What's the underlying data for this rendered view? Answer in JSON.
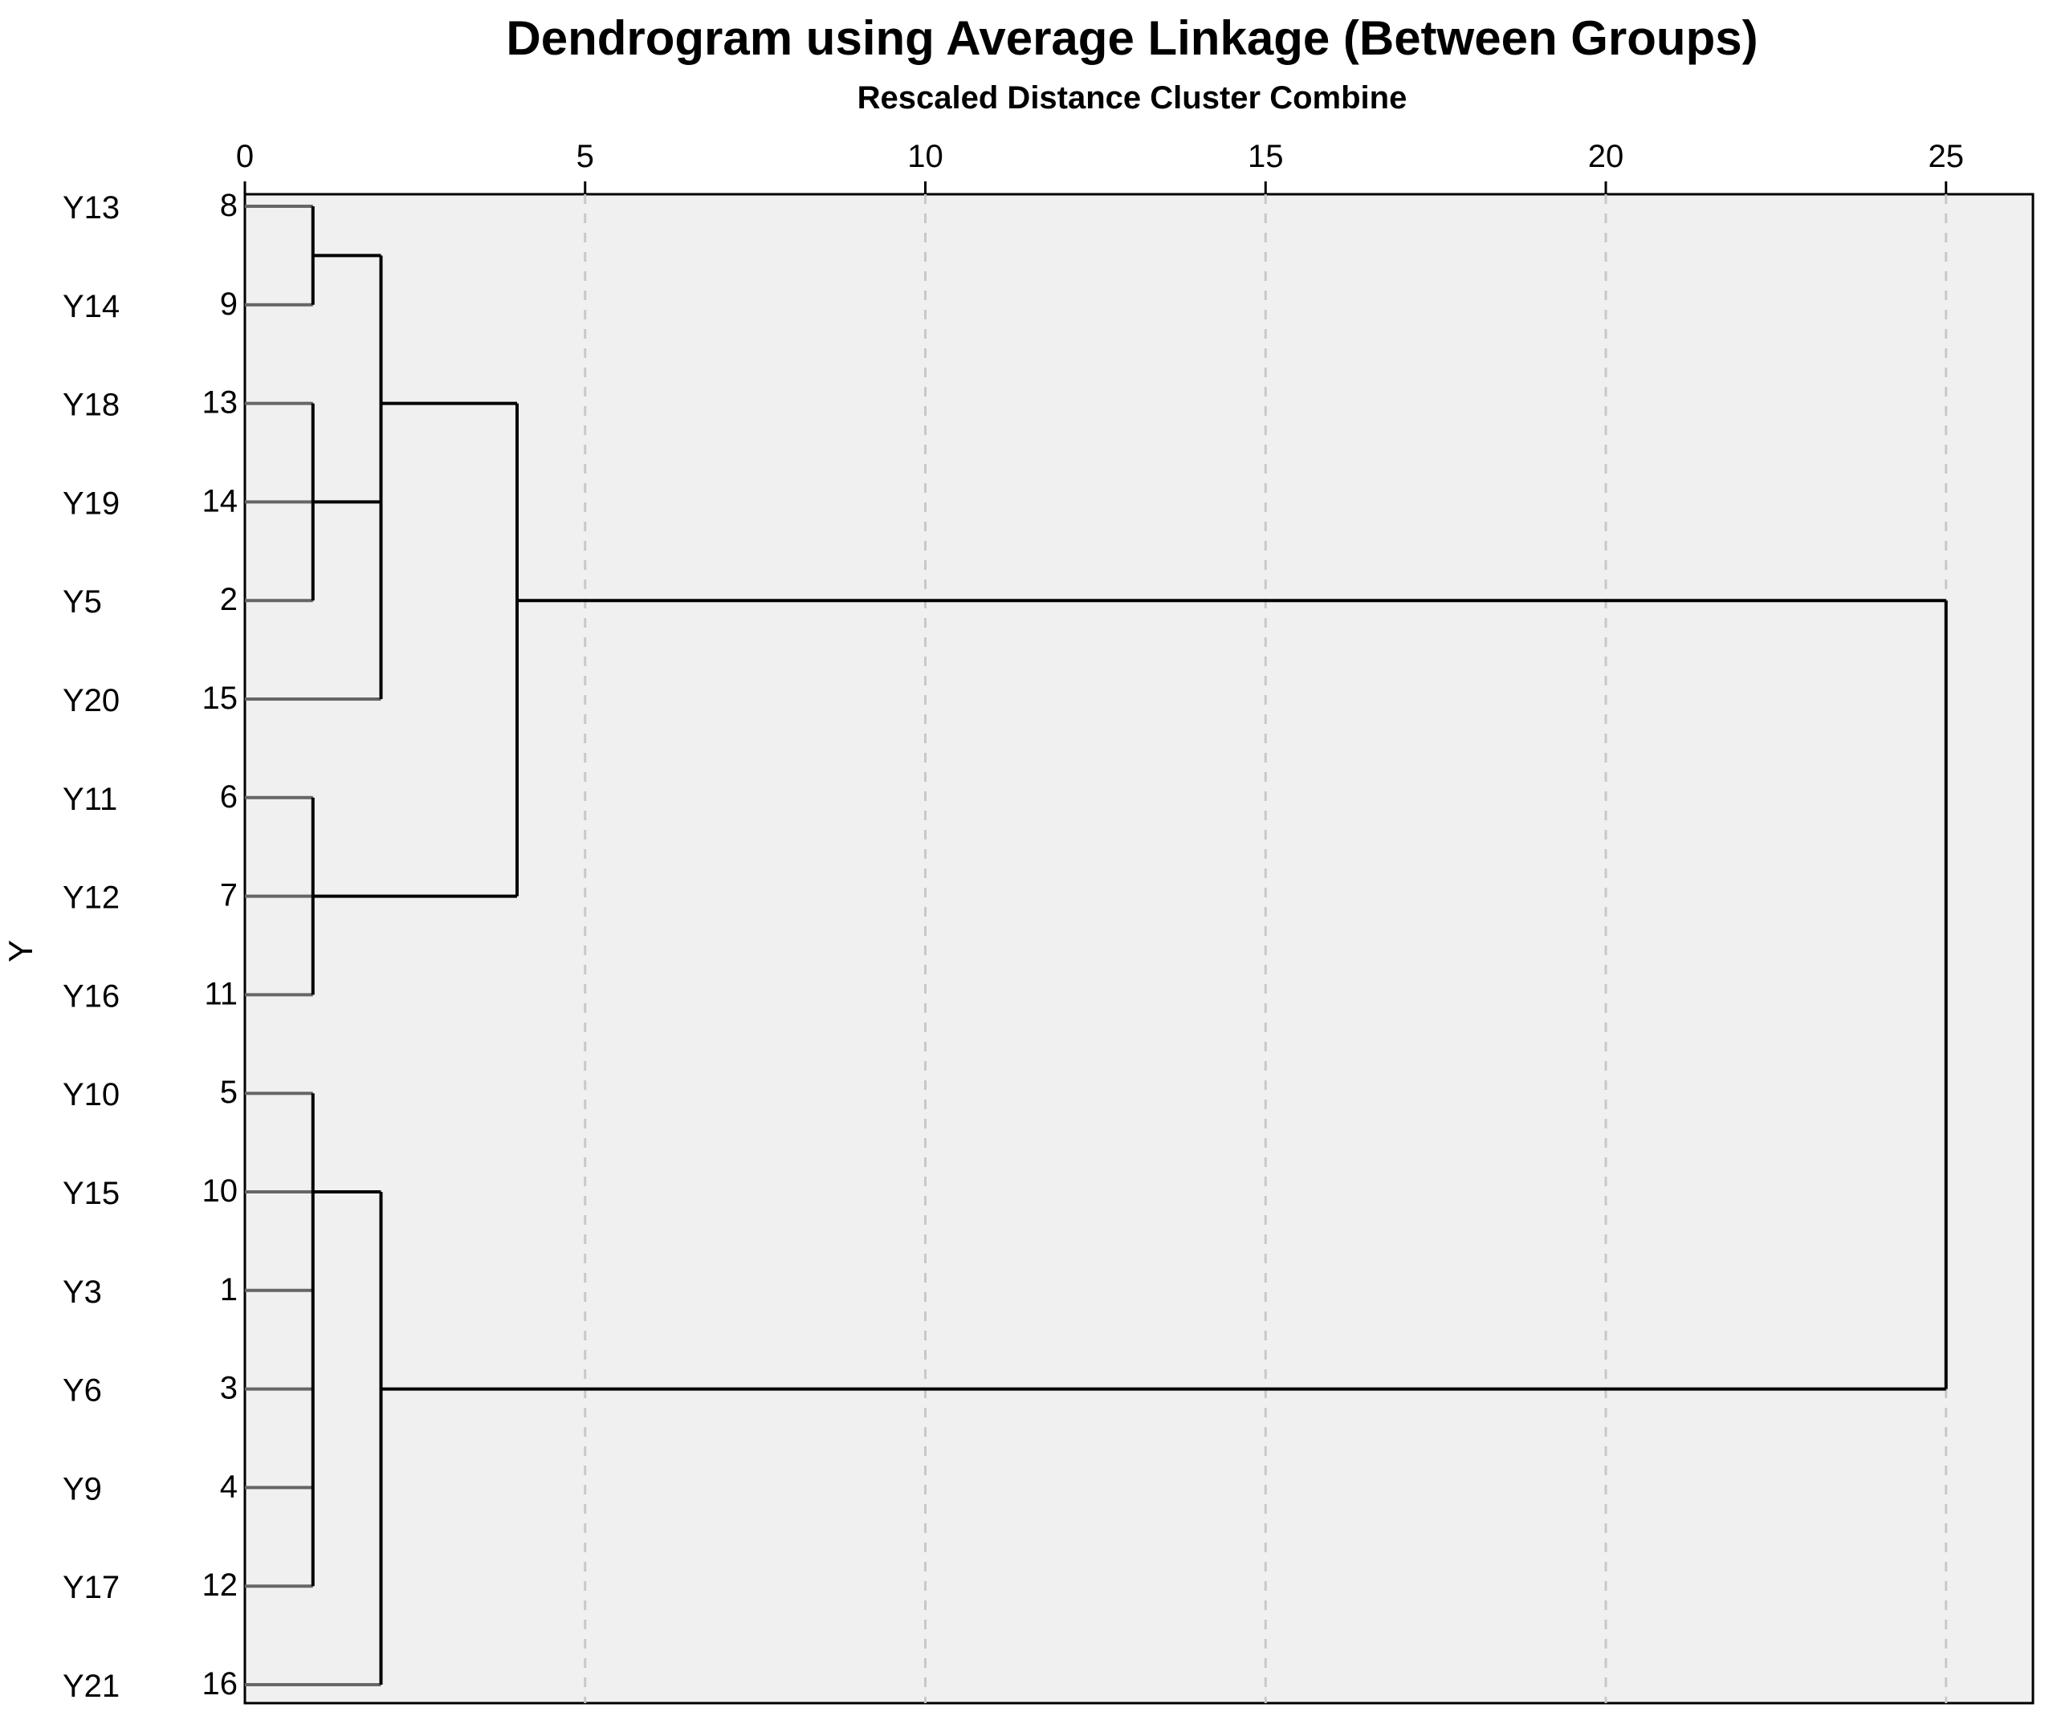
{
  "chart_data": {
    "type": "dendrogram",
    "title": "Dendrogram using Average Linkage (Between Groups)",
    "subtitle": "Rescaled Distance Cluster Combine",
    "ylabel": "Y",
    "x_ticks": [
      0,
      5,
      10,
      15,
      20,
      25
    ],
    "xlim": [
      0,
      26.3
    ],
    "grid": true,
    "leaves": [
      {
        "label": "Y13",
        "case": "8"
      },
      {
        "label": "Y14",
        "case": "9"
      },
      {
        "label": "Y18",
        "case": "13"
      },
      {
        "label": "Y19",
        "case": "14"
      },
      {
        "label": "Y5",
        "case": "2"
      },
      {
        "label": "Y20",
        "case": "15"
      },
      {
        "label": "Y11",
        "case": "6"
      },
      {
        "label": "Y12",
        "case": "7"
      },
      {
        "label": "Y16",
        "case": "11"
      },
      {
        "label": "Y10",
        "case": "5"
      },
      {
        "label": "Y15",
        "case": "10"
      },
      {
        "label": "Y3",
        "case": "1"
      },
      {
        "label": "Y6",
        "case": "3"
      },
      {
        "label": "Y9",
        "case": "4"
      },
      {
        "label": "Y17",
        "case": "12"
      },
      {
        "label": "Y21",
        "case": "16"
      }
    ],
    "merges": [
      {
        "id": "A",
        "children": [
          "L0",
          "L1"
        ],
        "distance": 1,
        "attach": "mid"
      },
      {
        "id": "B",
        "children": [
          "L2",
          "L3",
          "L4"
        ],
        "distance": 1,
        "attach": "L3"
      },
      {
        "id": "C",
        "children": [
          "A",
          "B",
          "L5"
        ],
        "distance": 2,
        "attach": "L2"
      },
      {
        "id": "D",
        "children": [
          "L6",
          "L7",
          "L8"
        ],
        "distance": 1,
        "attach": "L7"
      },
      {
        "id": "E",
        "children": [
          "C",
          "D"
        ],
        "distance": 4,
        "attach": "L4"
      },
      {
        "id": "F",
        "children": [
          "L9",
          "L10",
          "L11",
          "L12",
          "L13",
          "L14"
        ],
        "distance": 1,
        "attach": "L10"
      },
      {
        "id": "G",
        "children": [
          "F",
          "L15"
        ],
        "distance": 2,
        "attach": "L12"
      },
      {
        "id": "H",
        "children": [
          "E",
          "G"
        ],
        "distance": 25,
        "attach": "mid"
      }
    ]
  }
}
